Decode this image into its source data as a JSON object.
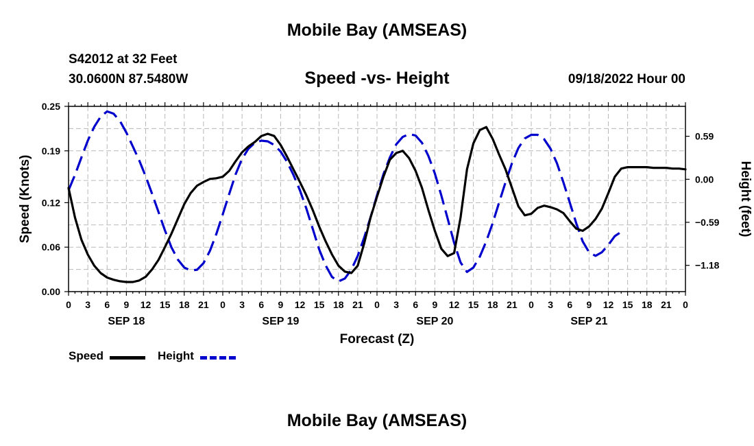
{
  "header": {
    "title": "Mobile Bay (AMSEAS)",
    "station": "S42012 at 32 Feet",
    "coords": "30.0600N  87.5480W",
    "subtitle": "Speed -vs- Height",
    "runtime": "09/18/2022 Hour 00"
  },
  "footer": {
    "title": "Mobile Bay (AMSEAS)"
  },
  "legend": {
    "speed_label": "Speed",
    "height_label": "Height"
  },
  "chart_data": {
    "type": "line",
    "title": "Speed -vs- Height",
    "xlabel": "Forecast (Z)",
    "ylabel_left": "Speed (Knots)",
    "ylabel_right": "Height (feet)",
    "grid": true,
    "legend_position": "bottom-left",
    "x_range_hours": [
      0,
      96
    ],
    "x_tick_labels": [
      "0",
      "3",
      "6",
      "9",
      "12",
      "15",
      "18",
      "21",
      "0",
      "3",
      "6",
      "9",
      "12",
      "15",
      "18",
      "21",
      "0",
      "3",
      "6",
      "9",
      "12",
      "15",
      "18",
      "21",
      "0",
      "3",
      "6",
      "9",
      "12",
      "15",
      "18",
      "21",
      "0"
    ],
    "date_labels": [
      {
        "label": "SEP 18",
        "hour": 9
      },
      {
        "label": "SEP 19",
        "hour": 33
      },
      {
        "label": "SEP 20",
        "hour": 57
      },
      {
        "label": "SEP 21",
        "hour": 81
      }
    ],
    "y_left": {
      "range": [
        0,
        0.25
      ],
      "ticks": [
        0.0,
        0.06,
        0.12,
        0.19,
        0.25
      ],
      "tick_labels": [
        "0.00",
        "0.06",
        "0.12",
        "0.19",
        "0.25"
      ]
    },
    "y_right": {
      "range": [
        -1.54,
        1.0
      ],
      "ticks": [
        -1.18,
        -0.59,
        0.0,
        0.59
      ],
      "tick_labels": [
        "−1.18",
        "−0.59",
        "0.00",
        "0.59"
      ]
    },
    "series": [
      {
        "name": "Speed",
        "axis": "left",
        "color": "#000000",
        "style": "solid",
        "points": [
          [
            0,
            0.14
          ],
          [
            1,
            0.1
          ],
          [
            2,
            0.07
          ],
          [
            3,
            0.05
          ],
          [
            4,
            0.035
          ],
          [
            5,
            0.025
          ],
          [
            6,
            0.019
          ],
          [
            7,
            0.016
          ],
          [
            8,
            0.014
          ],
          [
            9,
            0.013
          ],
          [
            10,
            0.013
          ],
          [
            11,
            0.015
          ],
          [
            12,
            0.02
          ],
          [
            13,
            0.03
          ],
          [
            14,
            0.043
          ],
          [
            15,
            0.06
          ],
          [
            16,
            0.078
          ],
          [
            17,
            0.098
          ],
          [
            18,
            0.118
          ],
          [
            19,
            0.133
          ],
          [
            20,
            0.143
          ],
          [
            21,
            0.148
          ],
          [
            22,
            0.152
          ],
          [
            23,
            0.153
          ],
          [
            24,
            0.155
          ],
          [
            25,
            0.163
          ],
          [
            26,
            0.176
          ],
          [
            27,
            0.188
          ],
          [
            28,
            0.196
          ],
          [
            29,
            0.202
          ],
          [
            30,
            0.21
          ],
          [
            31,
            0.213
          ],
          [
            32,
            0.21
          ],
          [
            33,
            0.198
          ],
          [
            34,
            0.182
          ],
          [
            35,
            0.165
          ],
          [
            36,
            0.148
          ],
          [
            37,
            0.13
          ],
          [
            38,
            0.11
          ],
          [
            39,
            0.088
          ],
          [
            40,
            0.068
          ],
          [
            41,
            0.05
          ],
          [
            42,
            0.035
          ],
          [
            43,
            0.027
          ],
          [
            44,
            0.025
          ],
          [
            45,
            0.035
          ],
          [
            46,
            0.065
          ],
          [
            47,
            0.1
          ],
          [
            48,
            0.128
          ],
          [
            49,
            0.155
          ],
          [
            50,
            0.178
          ],
          [
            51,
            0.187
          ],
          [
            52,
            0.19
          ],
          [
            53,
            0.18
          ],
          [
            54,
            0.163
          ],
          [
            55,
            0.14
          ],
          [
            56,
            0.11
          ],
          [
            57,
            0.082
          ],
          [
            58,
            0.058
          ],
          [
            59,
            0.048
          ],
          [
            60,
            0.052
          ],
          [
            61,
            0.1
          ],
          [
            62,
            0.165
          ],
          [
            63,
            0.2
          ],
          [
            64,
            0.218
          ],
          [
            65,
            0.222
          ],
          [
            66,
            0.206
          ],
          [
            67,
            0.185
          ],
          [
            68,
            0.165
          ],
          [
            69,
            0.14
          ],
          [
            70,
            0.115
          ],
          [
            71,
            0.103
          ],
          [
            72,
            0.105
          ],
          [
            73,
            0.113
          ],
          [
            74,
            0.116
          ],
          [
            75,
            0.114
          ],
          [
            76,
            0.111
          ],
          [
            77,
            0.106
          ],
          [
            78,
            0.095
          ],
          [
            79,
            0.085
          ],
          [
            80,
            0.082
          ],
          [
            81,
            0.088
          ],
          [
            82,
            0.098
          ],
          [
            83,
            0.112
          ],
          [
            84,
            0.133
          ],
          [
            85,
            0.155
          ],
          [
            86,
            0.166
          ],
          [
            87,
            0.168
          ],
          [
            88,
            0.168
          ],
          [
            89,
            0.168
          ],
          [
            90,
            0.168
          ],
          [
            91,
            0.167
          ],
          [
            92,
            0.167
          ],
          [
            93,
            0.167
          ],
          [
            94,
            0.166
          ],
          [
            95,
            0.166
          ],
          [
            96,
            0.165
          ]
        ]
      },
      {
        "name": "Height",
        "axis": "right",
        "color": "#0000cc",
        "style": "dashed",
        "points": [
          [
            0,
            -0.15
          ],
          [
            1,
            0.06
          ],
          [
            2,
            0.3
          ],
          [
            3,
            0.53
          ],
          [
            4,
            0.72
          ],
          [
            5,
            0.86
          ],
          [
            6,
            0.93
          ],
          [
            7,
            0.9
          ],
          [
            8,
            0.8
          ],
          [
            9,
            0.64
          ],
          [
            10,
            0.45
          ],
          [
            11,
            0.26
          ],
          [
            12,
            0.04
          ],
          [
            13,
            -0.2
          ],
          [
            14,
            -0.45
          ],
          [
            15,
            -0.7
          ],
          [
            16,
            -0.93
          ],
          [
            17,
            -1.1
          ],
          [
            18,
            -1.21
          ],
          [
            19,
            -1.25
          ],
          [
            20,
            -1.24
          ],
          [
            21,
            -1.15
          ],
          [
            22,
            -0.98
          ],
          [
            23,
            -0.75
          ],
          [
            24,
            -0.48
          ],
          [
            25,
            -0.2
          ],
          [
            26,
            0.07
          ],
          [
            27,
            0.28
          ],
          [
            28,
            0.42
          ],
          [
            29,
            0.5
          ],
          [
            30,
            0.53
          ],
          [
            31,
            0.52
          ],
          [
            32,
            0.47
          ],
          [
            33,
            0.38
          ],
          [
            34,
            0.24
          ],
          [
            35,
            0.06
          ],
          [
            36,
            -0.15
          ],
          [
            37,
            -0.4
          ],
          [
            38,
            -0.68
          ],
          [
            39,
            -0.96
          ],
          [
            40,
            -1.18
          ],
          [
            41,
            -1.34
          ],
          [
            42,
            -1.4
          ],
          [
            43,
            -1.36
          ],
          [
            44,
            -1.24
          ],
          [
            45,
            -1.05
          ],
          [
            46,
            -0.8
          ],
          [
            47,
            -0.52
          ],
          [
            48,
            -0.22
          ],
          [
            49,
            0.07
          ],
          [
            50,
            0.3
          ],
          [
            51,
            0.48
          ],
          [
            52,
            0.58
          ],
          [
            53,
            0.62
          ],
          [
            54,
            0.6
          ],
          [
            55,
            0.5
          ],
          [
            56,
            0.32
          ],
          [
            57,
            0.08
          ],
          [
            58,
            -0.22
          ],
          [
            59,
            -0.54
          ],
          [
            60,
            -0.87
          ],
          [
            61,
            -1.14
          ],
          [
            62,
            -1.27
          ],
          [
            63,
            -1.21
          ],
          [
            64,
            -1.06
          ],
          [
            65,
            -0.85
          ],
          [
            66,
            -0.6
          ],
          [
            67,
            -0.32
          ],
          [
            68,
            -0.04
          ],
          [
            69,
            0.22
          ],
          [
            70,
            0.43
          ],
          [
            71,
            0.56
          ],
          [
            72,
            0.61
          ],
          [
            73,
            0.61
          ],
          [
            74,
            0.55
          ],
          [
            75,
            0.42
          ],
          [
            76,
            0.22
          ],
          [
            77,
            -0.04
          ],
          [
            78,
            -0.32
          ],
          [
            79,
            -0.6
          ],
          [
            80,
            -0.85
          ],
          [
            81,
            -1.0
          ],
          [
            82,
            -1.05
          ],
          [
            83,
            -1.0
          ],
          [
            84,
            -0.9
          ],
          [
            85,
            -0.78
          ],
          [
            86,
            -0.72
          ]
        ]
      }
    ]
  }
}
